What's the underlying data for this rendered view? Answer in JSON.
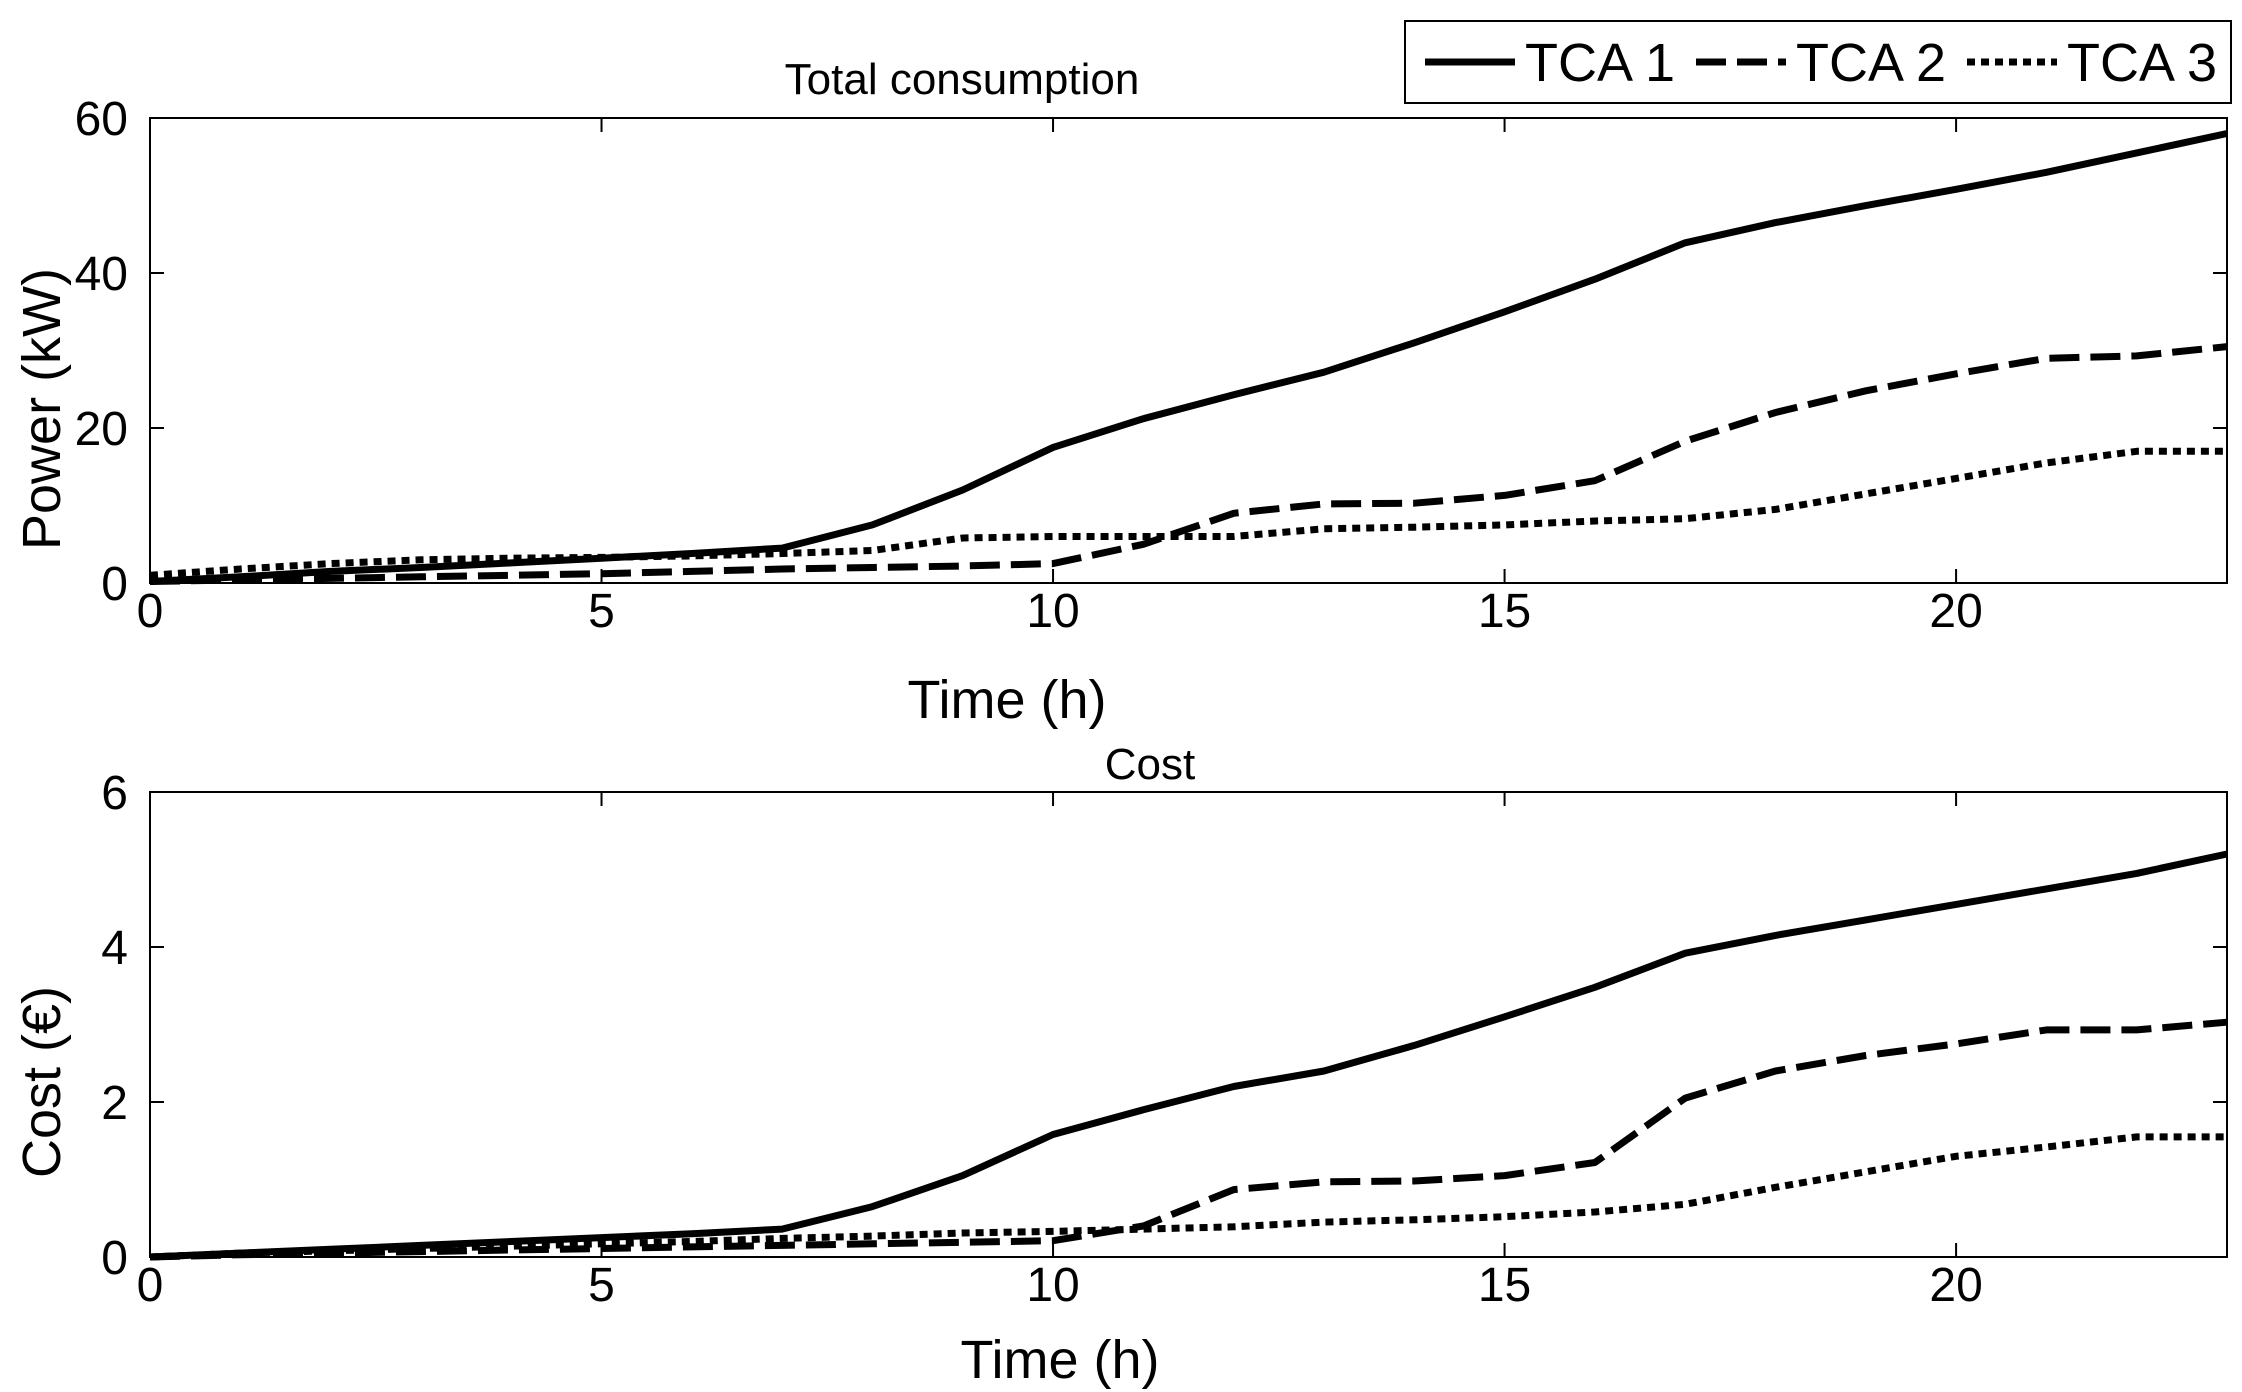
{
  "chart_data": [
    {
      "type": "line",
      "title": "Total consumption",
      "xlabel": "Time (h)",
      "ylabel": "Power (kW)",
      "xlim": [
        0,
        23
      ],
      "ylim": [
        0,
        60
      ],
      "xticks": [
        0,
        5,
        10,
        15,
        20
      ],
      "yticks": [
        0,
        20,
        40,
        60
      ],
      "grid": false,
      "legend_position": "top-right",
      "x": [
        0,
        1,
        2,
        3,
        4,
        5,
        6,
        7,
        8,
        9,
        10,
        11,
        12,
        13,
        14,
        15,
        16,
        17,
        18,
        19,
        20,
        21,
        22,
        23
      ],
      "series": [
        {
          "name": "TCA 1",
          "style": "solid",
          "color": "#000000",
          "values": [
            0.2,
            0.8,
            1.5,
            2.0,
            2.6,
            3.2,
            3.8,
            4.5,
            7.5,
            12.0,
            17.5,
            21.2,
            24.3,
            27.2,
            31.0,
            35.0,
            39.2,
            43.9,
            46.5,
            48.7,
            50.8,
            53.0,
            55.5,
            58.0
          ]
        },
        {
          "name": "TCA 2",
          "style": "dashed",
          "color": "#000000",
          "values": [
            0.2,
            0.4,
            0.6,
            0.8,
            1.0,
            1.2,
            1.5,
            1.8,
            2.0,
            2.2,
            2.5,
            5.0,
            9.0,
            10.2,
            10.3,
            11.3,
            13.2,
            18.3,
            22.0,
            24.8,
            27.0,
            29.0,
            29.3,
            30.5
          ]
        },
        {
          "name": "TCA 3",
          "style": "dotted",
          "color": "#000000",
          "values": [
            1.0,
            1.8,
            2.5,
            3.0,
            3.2,
            3.3,
            3.5,
            3.8,
            4.2,
            5.8,
            6.0,
            6.0,
            6.0,
            7.0,
            7.2,
            7.5,
            8.0,
            8.3,
            9.5,
            11.5,
            13.5,
            15.5,
            17.0,
            17.0
          ]
        }
      ]
    },
    {
      "type": "line",
      "title": "Cost",
      "xlabel": "Time (h)",
      "ylabel": "Cost (€)",
      "xlim": [
        0,
        23
      ],
      "ylim": [
        0,
        6
      ],
      "xticks": [
        0,
        5,
        10,
        15,
        20
      ],
      "yticks": [
        0,
        2,
        4,
        6
      ],
      "grid": false,
      "x": [
        0,
        1,
        2,
        3,
        4,
        5,
        6,
        7,
        8,
        9,
        10,
        11,
        12,
        13,
        14,
        15,
        16,
        17,
        18,
        19,
        20,
        21,
        22,
        23
      ],
      "series": [
        {
          "name": "TCA 1",
          "style": "solid",
          "color": "#000000",
          "values": [
            0.0,
            0.05,
            0.1,
            0.15,
            0.2,
            0.25,
            0.3,
            0.36,
            0.65,
            1.05,
            1.58,
            1.9,
            2.2,
            2.4,
            2.73,
            3.1,
            3.48,
            3.92,
            4.15,
            4.35,
            4.55,
            4.75,
            4.95,
            5.2
          ]
        },
        {
          "name": "TCA 2",
          "style": "dashed",
          "color": "#000000",
          "values": [
            0.0,
            0.03,
            0.05,
            0.07,
            0.09,
            0.11,
            0.13,
            0.15,
            0.17,
            0.19,
            0.21,
            0.4,
            0.87,
            0.97,
            0.98,
            1.05,
            1.22,
            2.05,
            2.4,
            2.6,
            2.75,
            2.93,
            2.93,
            3.03
          ]
        },
        {
          "name": "TCA 3",
          "style": "dotted",
          "color": "#000000",
          "values": [
            0.0,
            0.05,
            0.08,
            0.11,
            0.14,
            0.17,
            0.2,
            0.24,
            0.27,
            0.31,
            0.33,
            0.36,
            0.39,
            0.45,
            0.48,
            0.52,
            0.58,
            0.68,
            0.9,
            1.1,
            1.3,
            1.42,
            1.55,
            1.55
          ]
        }
      ]
    }
  ]
}
